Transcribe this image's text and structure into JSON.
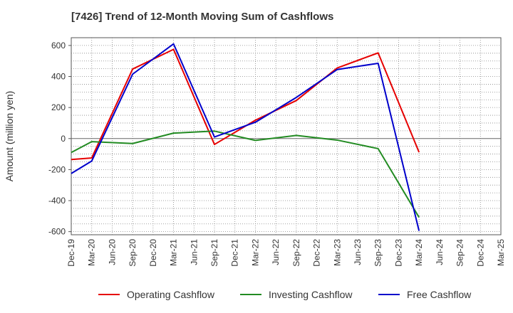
{
  "chart_data": {
    "type": "line",
    "title": "[7426]  Trend of 12-Month Moving Sum of Cashflows",
    "ylabel": "Amount (million yen)",
    "xlabel": "",
    "ylim": [
      -620,
      650
    ],
    "yticks": [
      600,
      400,
      200,
      0,
      -200,
      -400,
      -600
    ],
    "categories": [
      "Dec-19",
      "Mar-20",
      "Jun-20",
      "Sep-20",
      "Dec-20",
      "Mar-21",
      "Jun-21",
      "Sep-21",
      "Dec-21",
      "Mar-22",
      "Jun-22",
      "Sep-22",
      "Dec-22",
      "Mar-23",
      "Jun-23",
      "Sep-23",
      "Dec-23",
      "Mar-24",
      "Jun-24",
      "Sep-24",
      "Dec-24",
      "Mar-25"
    ],
    "grid": true,
    "legend_position": "bottom",
    "series": [
      {
        "name": "Operating Cashflow",
        "color": "#e60000",
        "values": [
          -135,
          -125,
          null,
          448,
          null,
          575,
          null,
          -38,
          null,
          118,
          null,
          245,
          null,
          455,
          null,
          552,
          null,
          -88,
          null,
          null,
          null,
          null
        ]
      },
      {
        "name": "Investing Cashflow",
        "color": "#228b22",
        "values": [
          -90,
          -20,
          null,
          -32,
          null,
          35,
          null,
          48,
          null,
          -12,
          null,
          20,
          null,
          -10,
          null,
          -65,
          null,
          -508,
          null,
          null,
          null,
          null
        ]
      },
      {
        "name": "Free Cashflow",
        "color": "#0000cc",
        "values": [
          -225,
          -145,
          null,
          415,
          null,
          610,
          null,
          10,
          null,
          105,
          null,
          265,
          null,
          445,
          null,
          485,
          null,
          -595,
          null,
          null,
          null,
          null
        ]
      }
    ]
  }
}
